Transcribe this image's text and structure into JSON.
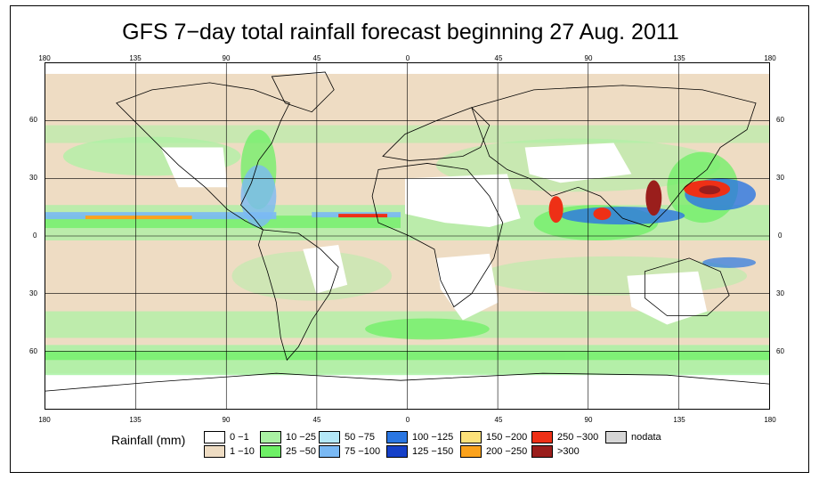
{
  "title": "GFS 7−day total rainfall forecast beginning 27 Aug. 2011",
  "lon_ticks": [
    "180",
    "135",
    "90",
    "45",
    "0",
    "45",
    "90",
    "135",
    "180"
  ],
  "lat_ticks": [
    "60",
    "30",
    "0",
    "30",
    "60"
  ],
  "legend": {
    "title": "Rainfall (mm)",
    "items": [
      {
        "label": "0 −1",
        "color": "#ffffff"
      },
      {
        "label": "1 −10",
        "color": "#eedcc3"
      },
      {
        "label": "10 −25",
        "color": "#a9f2a3"
      },
      {
        "label": "25 −50",
        "color": "#6ef066"
      },
      {
        "label": "50 −75",
        "color": "#b4e8f8"
      },
      {
        "label": "75 −100",
        "color": "#7ab9f4"
      },
      {
        "label": "100 −125",
        "color": "#2a76e2"
      },
      {
        "label": "125 −150",
        "color": "#1540c8"
      },
      {
        "label": "150 −200",
        "color": "#fde17a"
      },
      {
        "label": "200 −250",
        "color": "#fba21c"
      },
      {
        "label": "250 −300",
        "color": "#ee3016"
      },
      {
        "label": ">300",
        "color": "#9a1e1c"
      },
      {
        "label": "nodata",
        "color": "#d6d6d6"
      }
    ]
  }
}
